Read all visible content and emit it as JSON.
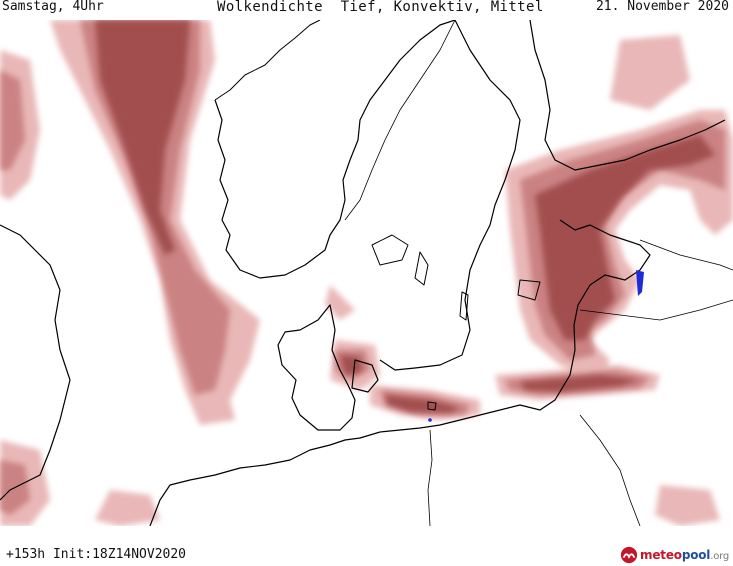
{
  "header": {
    "day": "Samstag, 4Uhr",
    "title": "Wolkendichte  Tief, Konvektiv, Mittel",
    "date": "21. November 2020"
  },
  "footer": {
    "run": "+153h Init:18Z14NOV2020",
    "brand": {
      "part1": "meteo",
      "part2": "pool",
      "part3": ".org"
    }
  },
  "colors": {
    "cloud_light": "#e8b4b4",
    "cloud_mid": "#c98080",
    "cloud_dark": "#9e4a4a",
    "coastline": "#000000",
    "precip": "#1f2bd6",
    "brand_red": "#c4162a",
    "brand_blue": "#1f4f9e"
  },
  "icons": {
    "logo": "meteopool-logo-icon"
  }
}
